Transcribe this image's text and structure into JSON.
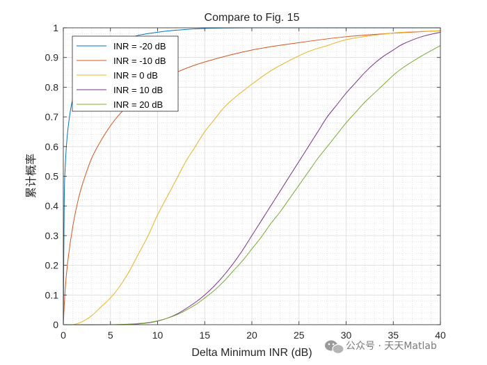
{
  "chart_data": {
    "type": "line",
    "title": "Compare to Fig. 15",
    "xlabel": "Delta Minimum INR (dB)",
    "ylabel": "累计概率",
    "xlim": [
      0,
      40
    ],
    "ylim": [
      0,
      1
    ],
    "xticks": [
      0,
      5,
      10,
      15,
      20,
      25,
      30,
      35,
      40
    ],
    "yticks": [
      0,
      0.1,
      0.2,
      0.3,
      0.4,
      0.5,
      0.6,
      0.7,
      0.8,
      0.9,
      1
    ],
    "ytick_labels": [
      "0",
      "0.1",
      "0.2",
      "0.3",
      "0.4",
      "0.5",
      "0.6",
      "0.7",
      "0.8",
      "0.9",
      "1"
    ],
    "grid": true,
    "minor_grid": true,
    "legend_position": "top-left",
    "series": [
      {
        "name": "INR = -20 dB",
        "color": "#0072BD",
        "x": [
          0,
          0.1,
          0.2,
          0.4,
          0.7,
          1,
          1.5,
          2,
          3,
          4,
          5,
          6,
          7,
          8,
          10,
          12,
          15,
          20,
          40
        ],
        "y": [
          0,
          0.42,
          0.53,
          0.63,
          0.71,
          0.76,
          0.81,
          0.845,
          0.89,
          0.92,
          0.94,
          0.955,
          0.965,
          0.975,
          0.985,
          0.992,
          0.998,
          1.0,
          1.0
        ]
      },
      {
        "name": "INR = -10 dB",
        "color": "#D95319",
        "x": [
          0,
          0.2,
          0.5,
          1,
          1.5,
          2,
          3,
          4,
          5,
          6,
          7,
          8,
          10,
          12,
          15,
          20,
          25,
          30,
          35,
          40
        ],
        "y": [
          0,
          0.12,
          0.22,
          0.33,
          0.41,
          0.47,
          0.56,
          0.62,
          0.67,
          0.71,
          0.74,
          0.77,
          0.815,
          0.85,
          0.885,
          0.925,
          0.95,
          0.97,
          0.982,
          0.99
        ]
      },
      {
        "name": "INR = 0 dB",
        "color": "#EDB120",
        "x": [
          0,
          1,
          2,
          3,
          4,
          5,
          6,
          7,
          8,
          9,
          10,
          11,
          12,
          13,
          14,
          15,
          16,
          17,
          18,
          20,
          22,
          24,
          26,
          28,
          30,
          33,
          36,
          40
        ],
        "y": [
          0,
          0.0,
          0.01,
          0.03,
          0.06,
          0.09,
          0.13,
          0.18,
          0.24,
          0.3,
          0.37,
          0.43,
          0.49,
          0.55,
          0.6,
          0.65,
          0.69,
          0.73,
          0.76,
          0.81,
          0.855,
          0.89,
          0.92,
          0.94,
          0.96,
          0.975,
          0.985,
          0.99
        ]
      },
      {
        "name": "INR = 10 dB",
        "color": "#7E2F8E",
        "x": [
          0,
          5,
          8,
          10,
          12,
          14,
          15,
          16,
          17,
          18,
          19,
          20,
          21,
          22,
          23,
          24,
          25,
          26,
          27,
          28,
          29,
          30,
          31,
          32,
          33,
          34,
          35,
          36,
          38,
          40
        ],
        "y": [
          0,
          0.0,
          0.003,
          0.012,
          0.035,
          0.075,
          0.1,
          0.13,
          0.165,
          0.205,
          0.25,
          0.3,
          0.35,
          0.4,
          0.45,
          0.5,
          0.55,
          0.6,
          0.65,
          0.7,
          0.74,
          0.78,
          0.815,
          0.85,
          0.88,
          0.905,
          0.925,
          0.945,
          0.97,
          0.985
        ]
      },
      {
        "name": "INR = 20 dB",
        "color": "#77AC30",
        "x": [
          0,
          5,
          8,
          10,
          12,
          14,
          15,
          16,
          17,
          18,
          19,
          20,
          21,
          22,
          23,
          24,
          25,
          26,
          27,
          28,
          29,
          30,
          31,
          32,
          33,
          34,
          35,
          36,
          38,
          40
        ],
        "y": [
          0,
          0.0,
          0.004,
          0.013,
          0.033,
          0.067,
          0.09,
          0.115,
          0.145,
          0.18,
          0.215,
          0.255,
          0.295,
          0.34,
          0.38,
          0.425,
          0.47,
          0.515,
          0.56,
          0.6,
          0.64,
          0.68,
          0.715,
          0.75,
          0.78,
          0.81,
          0.84,
          0.865,
          0.905,
          0.94
        ]
      }
    ]
  },
  "watermark": {
    "text": "公众号 · 天天Matlab",
    "icon": "wechat-icon"
  }
}
